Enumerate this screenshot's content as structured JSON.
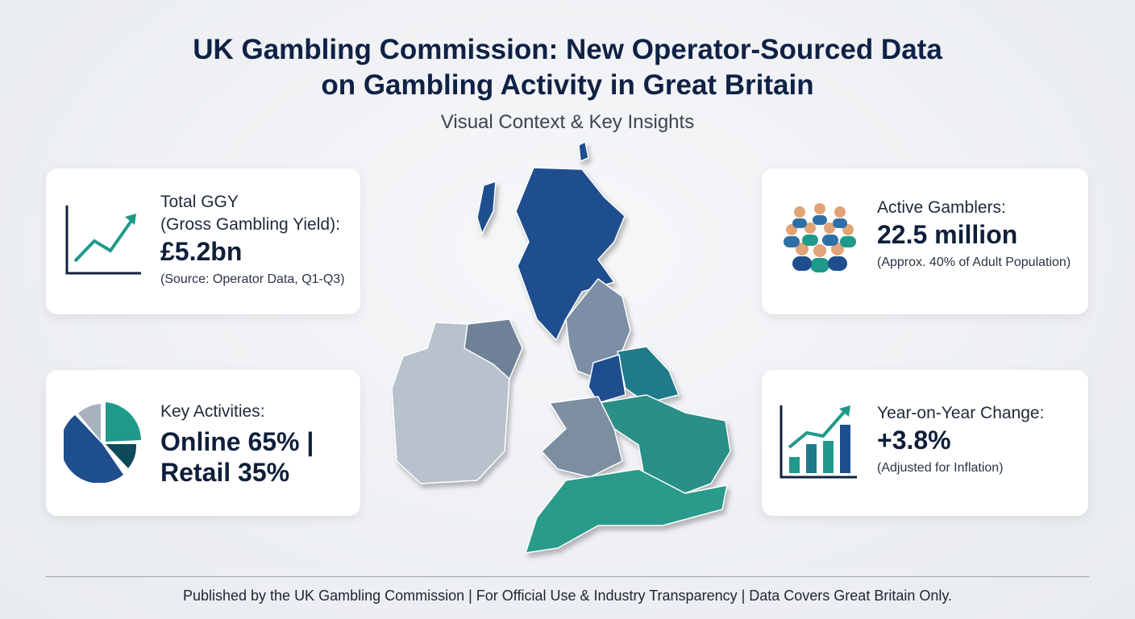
{
  "header": {
    "title_lines": [
      "UK Gambling Commission: New Operator-Sourced Data",
      "on Gambling Activity in Great Britain"
    ],
    "subtitle": "Visual Context & Key Insights"
  },
  "cards": [
    {
      "label_lines": [
        "Total GGY",
        "(Gross Gambling Yield):"
      ],
      "value_lines": [
        "£5.2bn"
      ],
      "note": "(Source: Operator Data, Q1-Q3)"
    },
    {
      "label_lines": [
        "Key Activities:"
      ],
      "value_lines": [
        "Online 65% |",
        "Retail 35%"
      ]
    },
    {
      "label_lines": [
        "Active Gamblers:"
      ],
      "value_lines": [
        "22.5 million"
      ],
      "note": "(Approx. 40% of Adult Population)"
    },
    {
      "label_lines": [
        "Year-on-Year Change:"
      ],
      "value_lines": [
        "+3.8%"
      ],
      "note": "(Adjusted for Inflation)"
    }
  ],
  "footer": "Published by the UK Gambling Commission | For Official Use & Industry Transparency | Data Covers Great Britain Only."
}
